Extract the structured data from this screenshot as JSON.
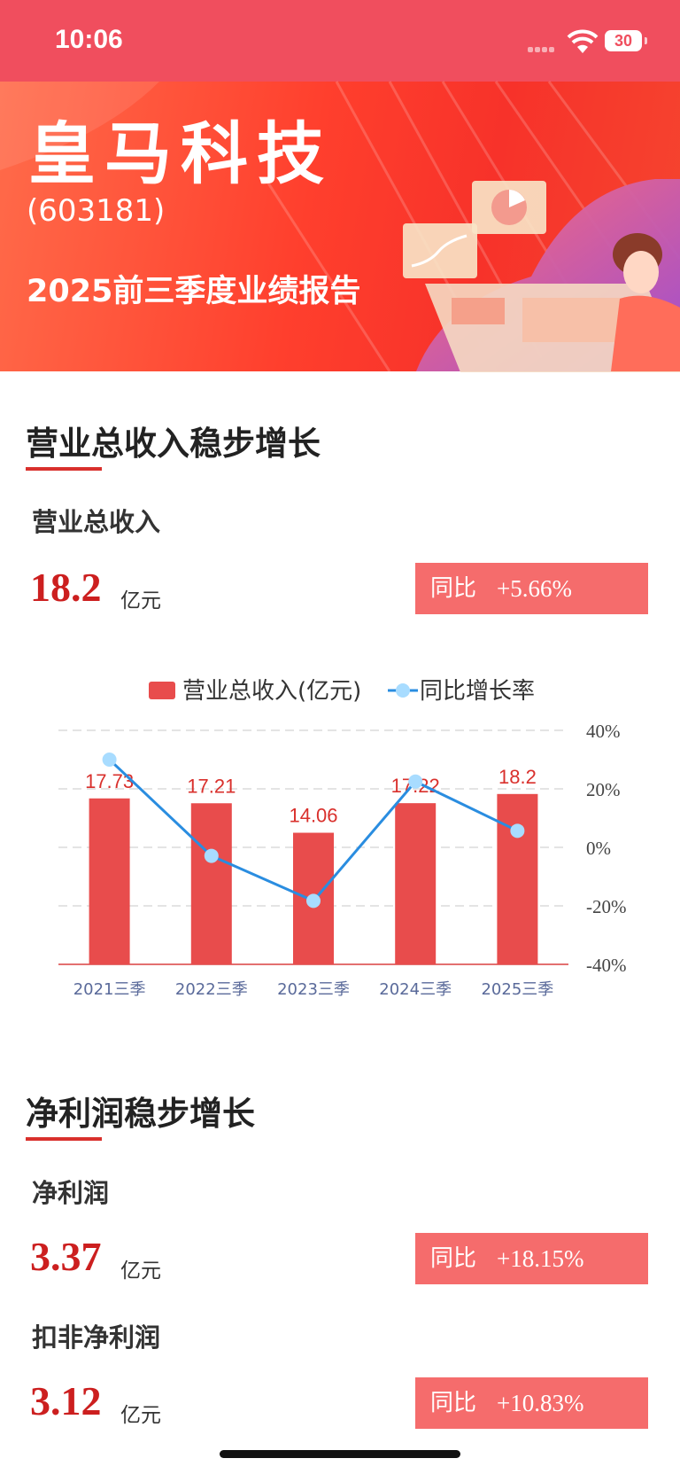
{
  "status_bar": {
    "time": "10:06",
    "battery": "30"
  },
  "banner": {
    "company": "皇马科技",
    "stock_code": "(603181)",
    "report_title": "2025前三季度业绩报告"
  },
  "revenue_section": {
    "title": "营业总收入稳步增长",
    "metric_label": "营业总收入",
    "value": "18.2",
    "unit": "亿元",
    "yoy_label": "同比",
    "yoy_value": "+5.66%"
  },
  "profit_section": {
    "title": "净利润稳步增长",
    "net_profit": {
      "label": "净利润",
      "value": "3.37",
      "unit": "亿元",
      "yoy_label": "同比",
      "yoy_value": "+18.15%"
    },
    "deducted_net_profit": {
      "label": "扣非净利润",
      "value": "3.12",
      "unit": "亿元",
      "yoy_label": "同比",
      "yoy_value": "+10.83%"
    }
  },
  "chart_data": {
    "type": "bar",
    "categories": [
      "2021三季",
      "2022三季",
      "2023三季",
      "2024三季",
      "2025三季"
    ],
    "series": [
      {
        "name": "营业总收入(亿元)",
        "type": "bar",
        "axis": "left",
        "values": [
          17.73,
          17.21,
          14.06,
          17.22,
          18.2
        ],
        "color": "#e84c4c"
      },
      {
        "name": "同比增长率",
        "type": "line",
        "axis": "right",
        "values": [
          30,
          -2.9,
          -18.3,
          22.5,
          5.66
        ],
        "color": "#2a8de0"
      }
    ],
    "data_labels": [
      "17.73",
      "17.21",
      "14.06",
      "17.22",
      "18.2"
    ],
    "y_left_range": [
      0,
      25
    ],
    "y_right_ticks": [
      "40%",
      "20%",
      "0%",
      "-20%",
      "-40%"
    ],
    "y_right_range": [
      -40,
      40
    ],
    "legend_position": "top-center",
    "grid": true
  }
}
